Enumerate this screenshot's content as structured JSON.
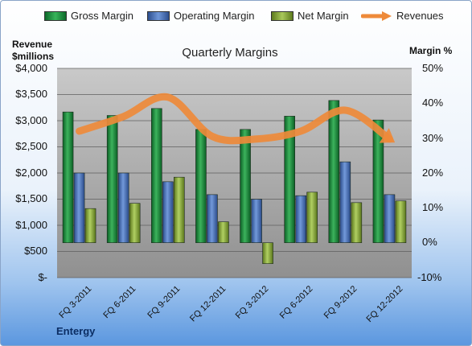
{
  "chart_data": {
    "type": "bar",
    "title": "Quarterly Margins",
    "footer_label": "Entergy",
    "legend": [
      "Gross Margin",
      "Operating Margin",
      "Net Margin",
      "Revenues"
    ],
    "ylabel_left": [
      "Revenue",
      "$millions"
    ],
    "ylabel_right": "Margin %",
    "yticks_left": [
      "$4,000",
      "$3,500",
      "$3,000",
      "$2,500",
      "$2,000",
      "$1,500",
      "$1,000",
      "$500",
      "$-"
    ],
    "yticks_right": [
      "50%",
      "40%",
      "30%",
      "20%",
      "10%",
      "0%",
      "-10%"
    ],
    "ylim_left": [
      0,
      4000
    ],
    "ylim_right": [
      -10,
      50
    ],
    "categories": [
      "FQ 3-2011",
      "FQ 6-2011",
      "FQ 9-2011",
      "FQ 12-2011",
      "FQ 3-2012",
      "FQ 6-2012",
      "FQ 9-2012",
      "FQ 12-2012"
    ],
    "series": [
      {
        "name": "Gross Margin",
        "axis": "right",
        "color": "#1f8a3e",
        "values": [
          37.5,
          36.5,
          38.5,
          32.5,
          32.5,
          36.3,
          40.8,
          35.2
        ]
      },
      {
        "name": "Operating Margin",
        "axis": "right",
        "color": "#4a72b8",
        "values": [
          20.0,
          20.0,
          17.5,
          13.8,
          12.5,
          13.5,
          23.2,
          13.8
        ]
      },
      {
        "name": "Net Margin",
        "axis": "right",
        "color": "#8fb040",
        "values": [
          9.8,
          11.3,
          18.8,
          6.0,
          -6.0,
          14.5,
          11.5,
          12.0
        ]
      },
      {
        "name": "Revenues",
        "axis": "left",
        "type": "line",
        "color": "#ee8a3a",
        "values": [
          2800,
          3080,
          3450,
          2700,
          2650,
          2800,
          3200,
          2650
        ]
      }
    ],
    "grid": true,
    "legend_position": "top"
  }
}
